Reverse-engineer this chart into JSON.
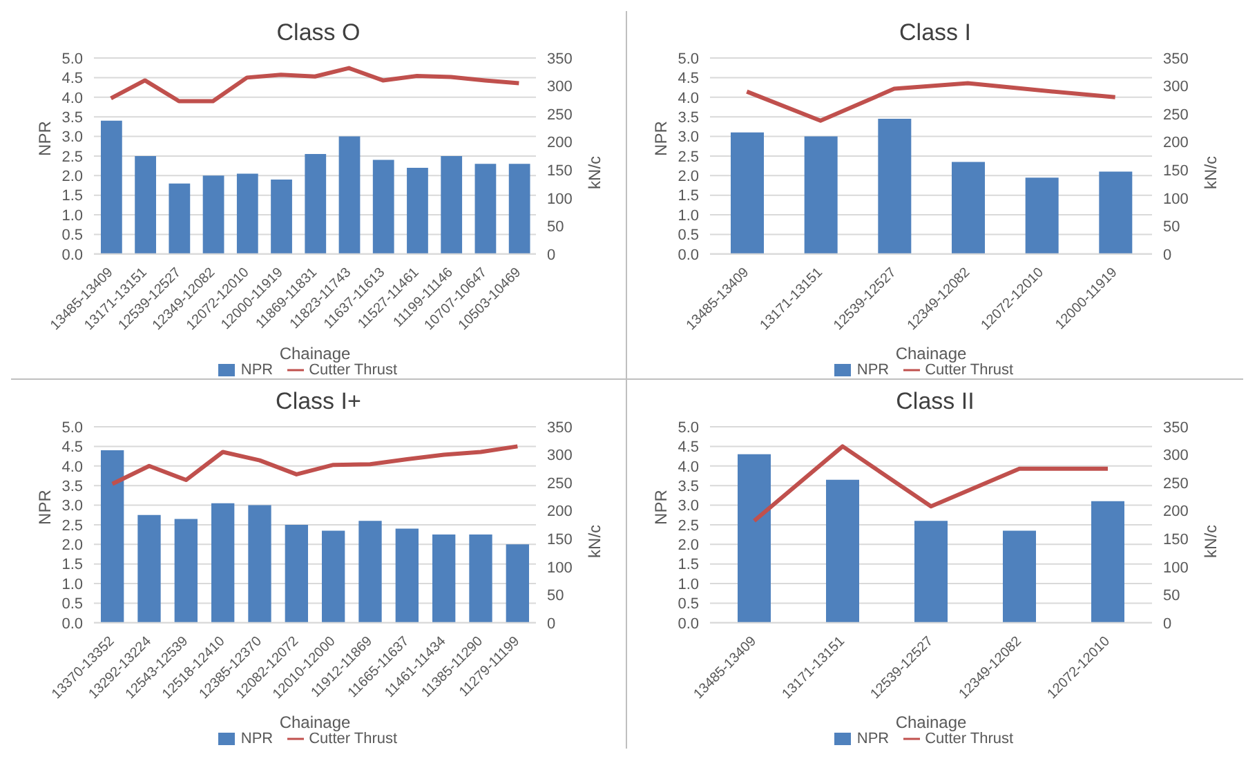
{
  "chart_data": [
    {
      "type": "bar",
      "title": "Class O",
      "xlabel": "Chainage",
      "ylabel": "NPR",
      "y2label": "kN/c",
      "categories": [
        "13485-13409",
        "13171-13151",
        "12539-12527",
        "12349-12082",
        "12072-12010",
        "12000-11919",
        "11869-11831",
        "11823-11743",
        "11637-11613",
        "11527-11461",
        "11199-11146",
        "10707-10647",
        "10503-10469"
      ],
      "series": [
        {
          "name": "NPR",
          "color": "#4f81bd",
          "values": [
            3.4,
            2.5,
            1.8,
            2.0,
            2.05,
            1.9,
            2.55,
            3.0,
            2.4,
            2.2,
            2.5,
            2.3,
            2.3
          ]
        },
        {
          "name": "Cutter Thrust",
          "type": "line",
          "axis": "y2",
          "color": "#c0504d",
          "values": [
            278,
            310,
            273,
            273,
            315,
            320,
            317,
            332,
            310,
            318,
            316,
            310,
            305
          ]
        }
      ],
      "ylim": [
        0,
        5
      ],
      "yticks": [
        {
          "value": 0,
          "label": "0.0"
        },
        {
          "value": 0.5,
          "label": "0.5"
        },
        {
          "value": 1,
          "label": "1.0"
        },
        {
          "value": 1.5,
          "label": "1.5"
        },
        {
          "value": 2,
          "label": "2.0"
        },
        {
          "value": 2.5,
          "label": "2.5"
        },
        {
          "value": 3,
          "label": "3.0"
        },
        {
          "value": 3.5,
          "label": "3.5"
        },
        {
          "value": 4,
          "label": "4.0"
        },
        {
          "value": 4.5,
          "label": "4.5"
        },
        {
          "value": 5,
          "label": "5.0"
        }
      ],
      "y2lim": [
        0,
        350
      ],
      "y2ticks": [
        0,
        50,
        100,
        150,
        200,
        250,
        300,
        350
      ],
      "grid": "y",
      "legend": "bottom",
      "marker": "none"
    },
    {
      "type": "bar",
      "title": "Class I",
      "xlabel": "Chainage",
      "ylabel": "NPR",
      "y2label": "kN/c",
      "categories": [
        "13485-13409",
        "13171-13151",
        "12539-12527",
        "12349-12082",
        "12072-12010",
        "12000-11919"
      ],
      "series": [
        {
          "name": "NPR",
          "color": "#4f81bd",
          "values": [
            3.1,
            3.0,
            3.45,
            2.35,
            1.95,
            2.1
          ]
        },
        {
          "name": "Cutter Thrust",
          "type": "line",
          "axis": "y2",
          "color": "#c0504d",
          "values": [
            290,
            238,
            295,
            305,
            292,
            280
          ]
        }
      ],
      "ylim": [
        0,
        5
      ],
      "yticks": [
        {
          "value": 0,
          "label": "0.0"
        },
        {
          "value": 0.5,
          "label": "0.5"
        },
        {
          "value": 1,
          "label": "1.0"
        },
        {
          "value": 1.5,
          "label": "1.5"
        },
        {
          "value": 2,
          "label": "2.0"
        },
        {
          "value": 2.5,
          "label": "2.5"
        },
        {
          "value": 3,
          "label": "3.0"
        },
        {
          "value": 3.5,
          "label": "3.5"
        },
        {
          "value": 4,
          "label": "4.0"
        },
        {
          "value": 4.5,
          "label": "4.5"
        },
        {
          "value": 5,
          "label": "5.0"
        }
      ],
      "y2lim": [
        0,
        350
      ],
      "y2ticks": [
        0,
        50,
        100,
        150,
        200,
        250,
        300,
        350
      ],
      "grid": "y",
      "legend": "bottom",
      "marker": "none"
    },
    {
      "type": "bar",
      "title": "Class I+",
      "xlabel": "Chainage",
      "ylabel": "NPR",
      "y2label": "kN/c",
      "categories": [
        "13370-13352",
        "13292-13224",
        "12543-12539",
        "12518-12410",
        "12385-12370",
        "12082-12072",
        "12010-12000",
        "11912-11869",
        "11665-11637",
        "11461-11434",
        "11385-11290",
        "11279-11199"
      ],
      "series": [
        {
          "name": "NPR",
          "color": "#4f81bd",
          "values": [
            4.4,
            2.75,
            2.65,
            3.05,
            3.0,
            2.5,
            2.35,
            2.6,
            2.4,
            2.25,
            2.25,
            2.0
          ]
        },
        {
          "name": "Cutter Thrust",
          "type": "line",
          "axis": "y2",
          "color": "#c0504d",
          "values": [
            248,
            280,
            255,
            305,
            290,
            265,
            282,
            283,
            292,
            300,
            305,
            315
          ]
        }
      ],
      "ylim": [
        0,
        5
      ],
      "yticks": [
        {
          "value": 0,
          "label": "0.0"
        },
        {
          "value": 0.5,
          "label": "0.5"
        },
        {
          "value": 1,
          "label": "1.0"
        },
        {
          "value": 1.5,
          "label": "1.5"
        },
        {
          "value": 2,
          "label": "2.0"
        },
        {
          "value": 2.5,
          "label": "2.5"
        },
        {
          "value": 3,
          "label": "3.0"
        },
        {
          "value": 3.5,
          "label": "3.5"
        },
        {
          "value": 4,
          "label": "4.0"
        },
        {
          "value": 4.5,
          "label": "4.5"
        },
        {
          "value": 5,
          "label": "5.0"
        }
      ],
      "y2lim": [
        0,
        350
      ],
      "y2ticks": [
        0,
        50,
        100,
        150,
        200,
        250,
        300,
        350
      ],
      "grid": "y",
      "legend": "bottom",
      "marker": "none"
    },
    {
      "type": "bar",
      "title": "Class II",
      "xlabel": "Chainage",
      "ylabel": "NPR",
      "y2label": "kN/c",
      "categories": [
        "13485-13409",
        "13171-13151",
        "12539-12527",
        "12349-12082",
        "12072-12010"
      ],
      "series": [
        {
          "name": "NPR",
          "color": "#4f81bd",
          "values": [
            4.3,
            3.65,
            2.6,
            2.35,
            3.1
          ]
        },
        {
          "name": "Cutter Thrust",
          "type": "line",
          "axis": "y2",
          "color": "#c0504d",
          "values": [
            182,
            315,
            208,
            275,
            275
          ]
        }
      ],
      "ylim": [
        0,
        5
      ],
      "yticks": [
        {
          "value": 0,
          "label": "0.0"
        },
        {
          "value": 0.5,
          "label": "0.5"
        },
        {
          "value": 1,
          "label": "1.0"
        },
        {
          "value": 1.5,
          "label": "1.5"
        },
        {
          "value": 2,
          "label": "2.0"
        },
        {
          "value": 2.5,
          "label": "2.5"
        },
        {
          "value": 3,
          "label": "3.0"
        },
        {
          "value": 3.5,
          "label": "3.5"
        },
        {
          "value": 4,
          "label": "4.0"
        },
        {
          "value": 4.5,
          "label": "4.5"
        },
        {
          "value": 5,
          "label": "5.0"
        }
      ],
      "y2lim": [
        0,
        350
      ],
      "y2ticks": [
        0,
        50,
        100,
        150,
        200,
        250,
        300,
        350
      ],
      "grid": "y",
      "legend": "bottom",
      "marker": "none"
    }
  ]
}
